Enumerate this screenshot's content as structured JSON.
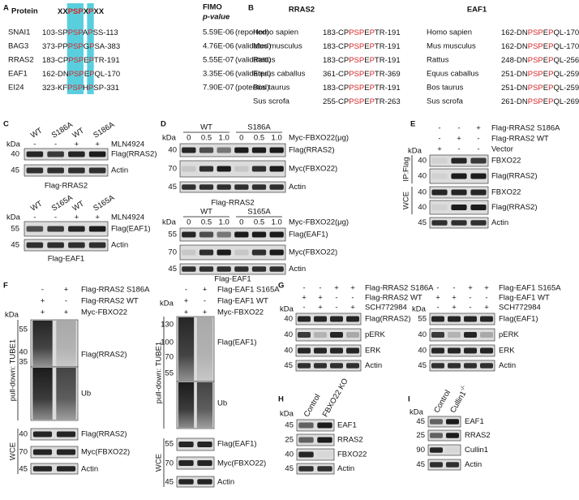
{
  "A": {
    "label": "A",
    "protein_header": "Protein",
    "motif_header": [
      "XX",
      "PSP",
      "X",
      "P",
      "XX"
    ],
    "fimo": "FIMO",
    "pvalue": "p-value",
    "rows": [
      {
        "protein": "SNAI1",
        "color": "#111111",
        "seq": [
          "103-SP",
          "PSP",
          "A",
          "P",
          "SS-113"
        ],
        "p": "5.59E-06",
        "status": "(reported)"
      },
      {
        "protein": "BAG3",
        "color": "#d62728",
        "seq": [
          "373-PP",
          "PSP",
          "G",
          "P",
          "SA-383"
        ],
        "p": "4.76E-06",
        "status": "(validated)"
      },
      {
        "protein": "RRAS2",
        "color": "#d62728",
        "seq": [
          "183-CP",
          "PSP",
          "E",
          "P",
          "TR-191"
        ],
        "p": "5.55E-07",
        "status": "(validated)"
      },
      {
        "protein": "EAF1",
        "color": "#d62728",
        "seq": [
          "162-DN",
          "PSP",
          "E",
          "P",
          "QL-170"
        ],
        "p": "3.35E-06",
        "status": "(validated)"
      },
      {
        "protein": "EI24",
        "color": "#111111",
        "seq": [
          "323-KF",
          "PSP",
          "H",
          "P",
          "SP-331"
        ],
        "p": "7.90E-07",
        "status": "(potential)"
      }
    ]
  },
  "B": {
    "label": "B",
    "groups": [
      {
        "title": "RRAS2",
        "rows": [
          {
            "species": "Homo sapien",
            "seq": [
              "183-CP",
              "PSP",
              "E",
              "P",
              "TR-191"
            ]
          },
          {
            "species": "Mus musculus",
            "seq": [
              "183-CP",
              "PSP",
              "E",
              "P",
              "TR-191"
            ]
          },
          {
            "species": "Rattus",
            "seq": [
              "183-CP",
              "PSP",
              "E",
              "P",
              "TR-191"
            ]
          },
          {
            "species": "Equus caballus",
            "seq": [
              "361-CP",
              "PSP",
              "E",
              "P",
              "TR-369"
            ]
          },
          {
            "species": "Bos taurus",
            "seq": [
              "183-CP",
              "PSP",
              "E",
              "P",
              "TR-191"
            ]
          },
          {
            "species": "Sus scrofa",
            "seq": [
              "255-CP",
              "PSP",
              "E",
              "P",
              "TR-263"
            ]
          }
        ]
      },
      {
        "title": "EAF1",
        "rows": [
          {
            "species": "Homo sapien",
            "seq": [
              "162-DN",
              "PSP",
              "E",
              "P",
              "QL-170"
            ]
          },
          {
            "species": "Mus musculus",
            "seq": [
              "162-DN",
              "PSP",
              "E",
              "P",
              "QL-170"
            ]
          },
          {
            "species": "Rattus",
            "seq": [
              "248-DN",
              "PSP",
              "E",
              "P",
              "QL-256"
            ]
          },
          {
            "species": "Equus caballus",
            "seq": [
              "251-DN",
              "PSP",
              "E",
              "P",
              "QL-259"
            ]
          },
          {
            "species": "Bos taurus",
            "seq": [
              "251-DN",
              "PSP",
              "E",
              "P",
              "QL-259"
            ]
          },
          {
            "species": "Sus scrofa",
            "seq": [
              "261-DN",
              "PSP",
              "E",
              "P",
              "QL-269"
            ]
          }
        ]
      }
    ]
  },
  "C": {
    "label": "C",
    "blots": [
      {
        "kda": "kDa",
        "lanes": [
          "WT",
          "S186A",
          "WT",
          "S186A"
        ],
        "signs": [
          "-",
          "-",
          "+",
          "+"
        ],
        "treatment": "MLN4924",
        "markers": [
          "40",
          "45"
        ],
        "bands": [
          "Flag(RRAS2)",
          "Actin"
        ],
        "caption": "Flag-RRAS2"
      },
      {
        "kda": "kDa",
        "lanes": [
          "WT",
          "S165A",
          "WT",
          "S165A"
        ],
        "signs": [
          "-",
          "-",
          "+",
          "+"
        ],
        "treatment": "MLN4924",
        "markers": [
          "55",
          "45"
        ],
        "bands": [
          "Flag(EAF1)",
          "Actin"
        ],
        "caption": "Flag-EAF1"
      }
    ]
  },
  "D": {
    "label": "D",
    "blots": [
      {
        "kda": "kDa",
        "groups": [
          "WT",
          "S186A"
        ],
        "doses": [
          "0",
          "0.5",
          "1.0",
          "0",
          "0.5",
          "1.0"
        ],
        "dose_name": "Myc-FBXO22(μg)",
        "markers": [
          "40",
          "70",
          "45"
        ],
        "bands": [
          "Flag(RRAS2)",
          "Myc(FBXO22)",
          "Actin"
        ],
        "caption": "Flag-RRAS2"
      },
      {
        "kda": "kDa",
        "groups": [
          "WT",
          "S165A"
        ],
        "doses": [
          "0",
          "0.5",
          "1.0",
          "0",
          "0.5",
          "1.0"
        ],
        "dose_name": "Myc-FBXO22(μg)",
        "markers": [
          "55",
          "70",
          "45"
        ],
        "bands": [
          "Flag(EAF1)",
          "Myc(FBXO22)",
          "Actin"
        ],
        "caption": "Flag-EAF1"
      }
    ]
  },
  "E": {
    "label": "E",
    "kda": "kDa",
    "conditions": [
      {
        "name": "Flag-RRAS2 S186A",
        "signs": [
          "-",
          "-",
          "+"
        ]
      },
      {
        "name": "Flag-RRAS2  WT",
        "signs": [
          "-",
          "+",
          "-"
        ]
      },
      {
        "name": "Vector",
        "signs": [
          "+",
          "-",
          "-"
        ]
      }
    ],
    "sections": [
      "IP:Flag",
      "WCE"
    ],
    "markers": [
      "40",
      "40",
      "40",
      "40",
      "45"
    ],
    "bands": [
      "FBXO22",
      "Flag(RRAS2)",
      "FBXO22",
      "Flag(RRAS2)",
      "Actin"
    ]
  },
  "F": {
    "label": "F",
    "blots": [
      {
        "kda": "kDa",
        "conditions": [
          {
            "name": "Flag-RRAS2 S186A",
            "signs": [
              "-",
              "+"
            ]
          },
          {
            "name": "Flag-RRAS2  WT",
            "signs": [
              "+",
              "-"
            ]
          },
          {
            "name": "Myc-FBXO22",
            "signs": [
              "+",
              "+"
            ]
          }
        ],
        "sections": [
          "pull-down: TUBE1",
          "WCE"
        ],
        "markers": [
          "55",
          "40",
          "35",
          "40",
          "70",
          "45"
        ],
        "bands": [
          "Flag(RRAS2)",
          "Ub",
          "Flag(RRAS2)",
          "Myc(FBXO22)",
          "Actin"
        ]
      },
      {
        "kda": "kDa",
        "conditions": [
          {
            "name": "Flag-EAF1 S165A",
            "signs": [
              "-",
              "+"
            ]
          },
          {
            "name": "Flag-EAF1 WT",
            "signs": [
              "+",
              "-"
            ]
          },
          {
            "name": "Myc-FBXO22",
            "signs": [
              "+",
              "+"
            ]
          }
        ],
        "sections": [
          "pull-down: TUBE1",
          "WCE"
        ],
        "markers": [
          "130",
          "100",
          "70",
          "55",
          "55",
          "70",
          "45"
        ],
        "bands": [
          "Flag(EAF1)",
          "Ub",
          "Flag(EAF1)",
          "Myc(FBXO22)",
          "Actin"
        ]
      }
    ]
  },
  "G": {
    "label": "G",
    "blots": [
      {
        "kda": "kDa",
        "conditions": [
          {
            "name": "Flag-RRAS2 S186A",
            "signs": [
              "-",
              "-",
              "+",
              "+"
            ]
          },
          {
            "name": "Flag-RRAS2 WT",
            "signs": [
              "+",
              "+",
              "-",
              "-"
            ]
          },
          {
            "name": "SCH772984",
            "signs": [
              "-",
              "+",
              "-",
              "+"
            ]
          }
        ],
        "markers": [
          "40",
          "40",
          "40",
          "45"
        ],
        "bands": [
          "Flag(RRAS2)",
          "pERK",
          "ERK",
          "Actin"
        ]
      },
      {
        "kda": "kDa",
        "conditions": [
          {
            "name": "Flag-EAF1 S165A",
            "signs": [
              "-",
              "-",
              "+",
              "+"
            ]
          },
          {
            "name": "Flag-EAF1 WT",
            "signs": [
              "+",
              "+",
              "-",
              "-"
            ]
          },
          {
            "name": "SCH772984",
            "signs": [
              "-",
              "+",
              "-",
              "+"
            ]
          }
        ],
        "markers": [
          "55",
          "40",
          "40",
          "45"
        ],
        "bands": [
          "Flag(EAF1)",
          "pERK",
          "ERK",
          "Actin"
        ]
      }
    ]
  },
  "H": {
    "label": "H",
    "kda": "kDa",
    "lanes": [
      "Control",
      "FBXO22 KO"
    ],
    "markers": [
      "45",
      "25",
      "40",
      "45"
    ],
    "bands": [
      "EAF1",
      "RRAS2",
      "FBXO22",
      "Actin"
    ]
  },
  "I": {
    "label": "I",
    "kda": "kDa",
    "lanes": [
      "Control",
      "Cullin1"
    ],
    "lane_superscript": "-/-",
    "markers": [
      "45",
      "25",
      "90",
      "45"
    ],
    "bands": [
      "EAF1",
      "RRAS2",
      "Cullin1",
      "Actin"
    ]
  }
}
